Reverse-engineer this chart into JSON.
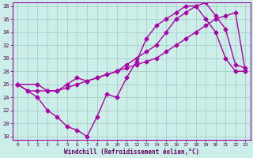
{
  "xlabel": "Windchill (Refroidissement éolien,°C)",
  "xlim": [
    -0.5,
    23.5
  ],
  "ylim": [
    17.5,
    38.5
  ],
  "yticks": [
    18,
    20,
    22,
    24,
    26,
    28,
    30,
    32,
    34,
    36,
    38
  ],
  "xticks": [
    0,
    1,
    2,
    3,
    4,
    5,
    6,
    7,
    8,
    9,
    10,
    11,
    12,
    13,
    14,
    15,
    16,
    17,
    18,
    19,
    20,
    21,
    22,
    23
  ],
  "bg_color": "#cceee8",
  "grid_color": "#aacccc",
  "line_color": "#aa00aa",
  "line1_x": [
    0,
    1,
    2,
    3,
    4,
    5,
    6,
    7,
    8,
    9,
    10,
    11,
    12,
    13,
    14,
    15,
    16,
    17,
    18,
    19,
    20,
    21,
    22,
    23
  ],
  "line1_y": [
    26,
    25,
    24,
    22,
    21,
    19.5,
    19,
    18,
    21,
    24.5,
    24,
    27,
    29.5,
    33,
    35,
    36,
    37,
    38,
    38,
    36,
    34,
    30,
    28,
    28
  ],
  "line2_x": [
    0,
    2,
    3,
    4,
    5,
    6,
    7,
    8,
    9,
    10,
    11,
    12,
    13,
    14,
    15,
    16,
    17,
    18,
    19,
    20,
    21,
    22,
    23
  ],
  "line2_y": [
    26,
    26,
    25,
    25,
    26,
    27,
    26.5,
    27,
    27.5,
    28,
    29,
    30,
    31,
    32,
    34,
    36,
    37,
    38,
    38.5,
    36.5,
    34.5,
    29,
    28.5
  ],
  "line3_x": [
    0,
    1,
    2,
    3,
    4,
    5,
    6,
    7,
    8,
    9,
    10,
    11,
    12,
    13,
    14,
    15,
    16,
    17,
    18,
    19,
    20,
    21,
    22,
    23
  ],
  "line3_y": [
    26,
    25,
    25,
    25,
    25,
    25.5,
    26,
    26.5,
    27,
    27.5,
    28,
    28.5,
    29,
    29.5,
    30,
    31,
    32,
    33,
    34,
    35,
    36,
    36.5,
    37,
    28
  ],
  "marker": "D",
  "markersize": 2.5,
  "linewidth": 1.0
}
